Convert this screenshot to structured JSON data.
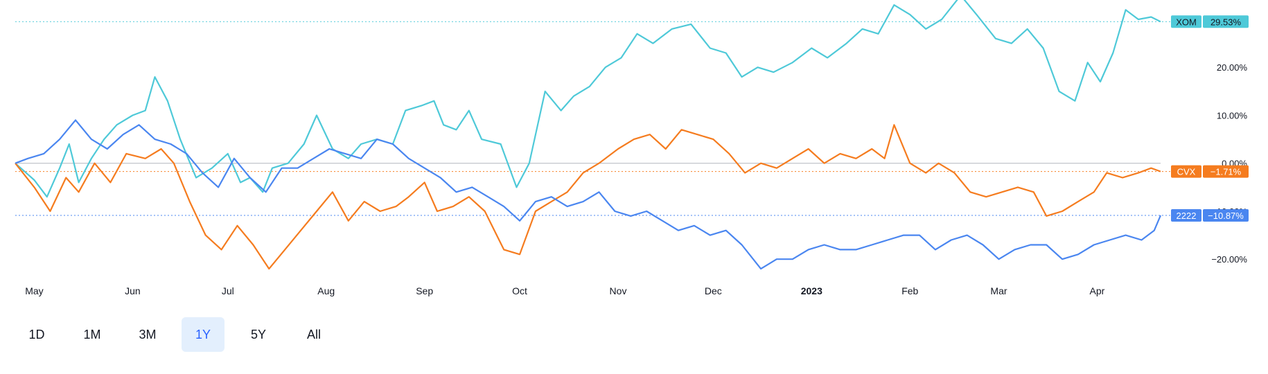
{
  "range_buttons": [
    {
      "label": "1D",
      "active": false
    },
    {
      "label": "1M",
      "active": false
    },
    {
      "label": "3M",
      "active": false
    },
    {
      "label": "1Y",
      "active": true
    },
    {
      "label": "5Y",
      "active": false
    },
    {
      "label": "All",
      "active": false
    }
  ],
  "colors": {
    "xom": "#4ec9d8",
    "cvx": "#f57c1f",
    "s2222": "#4a86f0",
    "zero_line": "#b2b5be"
  },
  "chart_data": {
    "type": "line",
    "x_range": [
      "2022-04-25",
      "2023-04-21"
    ],
    "ylim": [
      -23,
      30
    ],
    "y_ticks": [
      {
        "value": 20,
        "label": "20.00%"
      },
      {
        "value": 10,
        "label": "10.00%"
      },
      {
        "value": 0,
        "label": "0.00%"
      },
      {
        "value": -10,
        "label": "-10.00%"
      },
      {
        "value": -20,
        "label": "−20.00%"
      }
    ],
    "x_ticks": [
      {
        "date": "2022-05-01",
        "label": "May",
        "bold": false
      },
      {
        "date": "2022-06-01",
        "label": "Jun",
        "bold": false
      },
      {
        "date": "2022-07-01",
        "label": "Jul",
        "bold": false
      },
      {
        "date": "2022-08-01",
        "label": "Aug",
        "bold": false
      },
      {
        "date": "2022-09-01",
        "label": "Sep",
        "bold": false
      },
      {
        "date": "2022-10-01",
        "label": "Oct",
        "bold": false
      },
      {
        "date": "2022-11-01",
        "label": "Nov",
        "bold": false
      },
      {
        "date": "2022-12-01",
        "label": "Dec",
        "bold": false
      },
      {
        "date": "2023-01-01",
        "label": "2023",
        "bold": true
      },
      {
        "date": "2023-02-01",
        "label": "Feb",
        "bold": false
      },
      {
        "date": "2023-03-01",
        "label": "Mar",
        "bold": false
      },
      {
        "date": "2023-04-01",
        "label": "Apr",
        "bold": false
      }
    ],
    "series": [
      {
        "name": "XOM",
        "color_key": "xom",
        "last_label": "29.53%",
        "last_value": 29.53,
        "points": [
          [
            "2022-04-25",
            0.0
          ],
          [
            "2022-05-01",
            -3.5
          ],
          [
            "2022-05-05",
            -7.0
          ],
          [
            "2022-05-09",
            -1.0
          ],
          [
            "2022-05-12",
            4.0
          ],
          [
            "2022-05-15",
            -4.0
          ],
          [
            "2022-05-19",
            1.0
          ],
          [
            "2022-05-23",
            5.0
          ],
          [
            "2022-05-27",
            8.0
          ],
          [
            "2022-06-01",
            10.0
          ],
          [
            "2022-06-05",
            11.0
          ],
          [
            "2022-06-08",
            18.0
          ],
          [
            "2022-06-12",
            13.0
          ],
          [
            "2022-06-16",
            5.0
          ],
          [
            "2022-06-21",
            -3.0
          ],
          [
            "2022-06-26",
            -1.0
          ],
          [
            "2022-07-01",
            2.0
          ],
          [
            "2022-07-05",
            -4.0
          ],
          [
            "2022-07-08",
            -3.0
          ],
          [
            "2022-07-12",
            -6.0
          ],
          [
            "2022-07-15",
            -1.0
          ],
          [
            "2022-07-20",
            0.0
          ],
          [
            "2022-07-25",
            4.0
          ],
          [
            "2022-07-29",
            10.0
          ],
          [
            "2022-08-03",
            3.0
          ],
          [
            "2022-08-08",
            1.0
          ],
          [
            "2022-08-12",
            4.0
          ],
          [
            "2022-08-17",
            5.0
          ],
          [
            "2022-08-22",
            4.0
          ],
          [
            "2022-08-26",
            11.0
          ],
          [
            "2022-08-31",
            12.0
          ],
          [
            "2022-09-04",
            13.0
          ],
          [
            "2022-09-07",
            8.0
          ],
          [
            "2022-09-11",
            7.0
          ],
          [
            "2022-09-15",
            11.0
          ],
          [
            "2022-09-19",
            5.0
          ],
          [
            "2022-09-25",
            4.0
          ],
          [
            "2022-09-30",
            -5.0
          ],
          [
            "2022-10-04",
            0.0
          ],
          [
            "2022-10-09",
            15.0
          ],
          [
            "2022-10-14",
            11.0
          ],
          [
            "2022-10-18",
            14.0
          ],
          [
            "2022-10-23",
            16.0
          ],
          [
            "2022-10-28",
            20.0
          ],
          [
            "2022-11-02",
            22.0
          ],
          [
            "2022-11-07",
            27.0
          ],
          [
            "2022-11-12",
            25.0
          ],
          [
            "2022-11-18",
            28.0
          ],
          [
            "2022-11-24",
            29.0
          ],
          [
            "2022-11-30",
            24.0
          ],
          [
            "2022-12-05",
            23.0
          ],
          [
            "2022-12-10",
            18.0
          ],
          [
            "2022-12-15",
            20.0
          ],
          [
            "2022-12-20",
            19.0
          ],
          [
            "2022-12-26",
            21.0
          ],
          [
            "2023-01-01",
            24.0
          ],
          [
            "2023-01-06",
            22.0
          ],
          [
            "2023-01-12",
            25.0
          ],
          [
            "2023-01-17",
            28.0
          ],
          [
            "2023-01-22",
            27.0
          ],
          [
            "2023-01-27",
            33.0
          ],
          [
            "2023-02-01",
            31.0
          ],
          [
            "2023-02-06",
            28.0
          ],
          [
            "2023-02-11",
            30.0
          ],
          [
            "2023-02-17",
            35.0
          ],
          [
            "2023-02-22",
            31.0
          ],
          [
            "2023-02-28",
            26.0
          ],
          [
            "2023-03-05",
            25.0
          ],
          [
            "2023-03-10",
            28.0
          ],
          [
            "2023-03-15",
            24.0
          ],
          [
            "2023-03-20",
            15.0
          ],
          [
            "2023-03-25",
            13.0
          ],
          [
            "2023-03-29",
            21.0
          ],
          [
            "2023-04-02",
            17.0
          ],
          [
            "2023-04-06",
            23.0
          ],
          [
            "2023-04-10",
            32.0
          ],
          [
            "2023-04-14",
            30.0
          ],
          [
            "2023-04-18",
            30.5
          ],
          [
            "2023-04-21",
            29.53
          ]
        ]
      },
      {
        "name": "CVX",
        "color_key": "cvx",
        "last_label": "−1.71%",
        "last_value": -1.71,
        "points": [
          [
            "2022-04-25",
            0.0
          ],
          [
            "2022-05-01",
            -5.0
          ],
          [
            "2022-05-06",
            -10.0
          ],
          [
            "2022-05-11",
            -3.0
          ],
          [
            "2022-05-15",
            -6.0
          ],
          [
            "2022-05-20",
            0.0
          ],
          [
            "2022-05-25",
            -4.0
          ],
          [
            "2022-05-30",
            2.0
          ],
          [
            "2022-06-05",
            1.0
          ],
          [
            "2022-06-10",
            3.0
          ],
          [
            "2022-06-14",
            0.0
          ],
          [
            "2022-06-19",
            -8.0
          ],
          [
            "2022-06-24",
            -15.0
          ],
          [
            "2022-06-29",
            -18.0
          ],
          [
            "2022-07-04",
            -13.0
          ],
          [
            "2022-07-09",
            -17.0
          ],
          [
            "2022-07-14",
            -22.0
          ],
          [
            "2022-07-19",
            -18.0
          ],
          [
            "2022-07-24",
            -14.0
          ],
          [
            "2022-07-29",
            -10.0
          ],
          [
            "2022-08-03",
            -6.0
          ],
          [
            "2022-08-08",
            -12.0
          ],
          [
            "2022-08-13",
            -8.0
          ],
          [
            "2022-08-18",
            -10.0
          ],
          [
            "2022-08-23",
            -9.0
          ],
          [
            "2022-08-27",
            -7.0
          ],
          [
            "2022-09-01",
            -4.0
          ],
          [
            "2022-09-05",
            -10.0
          ],
          [
            "2022-09-10",
            -9.0
          ],
          [
            "2022-09-15",
            -7.0
          ],
          [
            "2022-09-20",
            -10.0
          ],
          [
            "2022-09-26",
            -18.0
          ],
          [
            "2022-10-01",
            -19.0
          ],
          [
            "2022-10-06",
            -10.0
          ],
          [
            "2022-10-11",
            -8.0
          ],
          [
            "2022-10-16",
            -6.0
          ],
          [
            "2022-10-21",
            -2.0
          ],
          [
            "2022-10-26",
            0.0
          ],
          [
            "2022-11-01",
            3.0
          ],
          [
            "2022-11-06",
            5.0
          ],
          [
            "2022-11-11",
            6.0
          ],
          [
            "2022-11-16",
            3.0
          ],
          [
            "2022-11-21",
            7.0
          ],
          [
            "2022-11-26",
            6.0
          ],
          [
            "2022-12-01",
            5.0
          ],
          [
            "2022-12-06",
            2.0
          ],
          [
            "2022-12-11",
            -2.0
          ],
          [
            "2022-12-16",
            0.0
          ],
          [
            "2022-12-21",
            -1.0
          ],
          [
            "2022-12-26",
            1.0
          ],
          [
            "2022-12-31",
            3.0
          ],
          [
            "2023-01-05",
            0.0
          ],
          [
            "2023-01-10",
            2.0
          ],
          [
            "2023-01-15",
            1.0
          ],
          [
            "2023-01-20",
            3.0
          ],
          [
            "2023-01-24",
            1.0
          ],
          [
            "2023-01-27",
            8.0
          ],
          [
            "2023-02-01",
            0.0
          ],
          [
            "2023-02-06",
            -2.0
          ],
          [
            "2023-02-10",
            0.0
          ],
          [
            "2023-02-15",
            -2.0
          ],
          [
            "2023-02-20",
            -6.0
          ],
          [
            "2023-02-25",
            -7.0
          ],
          [
            "2023-03-02",
            -6.0
          ],
          [
            "2023-03-07",
            -5.0
          ],
          [
            "2023-03-12",
            -6.0
          ],
          [
            "2023-03-16",
            -11.0
          ],
          [
            "2023-03-21",
            -10.0
          ],
          [
            "2023-03-26",
            -8.0
          ],
          [
            "2023-03-31",
            -6.0
          ],
          [
            "2023-04-04",
            -2.0
          ],
          [
            "2023-04-09",
            -3.0
          ],
          [
            "2023-04-14",
            -2.0
          ],
          [
            "2023-04-18",
            -1.0
          ],
          [
            "2023-04-21",
            -1.71
          ]
        ]
      },
      {
        "name": "2222",
        "color_key": "s2222",
        "last_label": "−10.87%",
        "last_value": -10.87,
        "points": [
          [
            "2022-04-25",
            0.0
          ],
          [
            "2022-04-29",
            1.0
          ],
          [
            "2022-05-04",
            2.0
          ],
          [
            "2022-05-09",
            5.0
          ],
          [
            "2022-05-14",
            9.0
          ],
          [
            "2022-05-19",
            5.0
          ],
          [
            "2022-05-24",
            3.0
          ],
          [
            "2022-05-29",
            6.0
          ],
          [
            "2022-06-03",
            8.0
          ],
          [
            "2022-06-08",
            5.0
          ],
          [
            "2022-06-13",
            4.0
          ],
          [
            "2022-06-18",
            2.0
          ],
          [
            "2022-06-23",
            -2.0
          ],
          [
            "2022-06-28",
            -5.0
          ],
          [
            "2022-07-03",
            1.0
          ],
          [
            "2022-07-08",
            -3.0
          ],
          [
            "2022-07-13",
            -6.0
          ],
          [
            "2022-07-18",
            -1.0
          ],
          [
            "2022-07-23",
            -1.0
          ],
          [
            "2022-07-28",
            1.0
          ],
          [
            "2022-08-02",
            3.0
          ],
          [
            "2022-08-07",
            2.0
          ],
          [
            "2022-08-12",
            1.0
          ],
          [
            "2022-08-17",
            5.0
          ],
          [
            "2022-08-22",
            4.0
          ],
          [
            "2022-08-27",
            1.0
          ],
          [
            "2022-09-01",
            -1.0
          ],
          [
            "2022-09-06",
            -3.0
          ],
          [
            "2022-09-11",
            -6.0
          ],
          [
            "2022-09-16",
            -5.0
          ],
          [
            "2022-09-21",
            -7.0
          ],
          [
            "2022-09-26",
            -9.0
          ],
          [
            "2022-10-01",
            -12.0
          ],
          [
            "2022-10-06",
            -8.0
          ],
          [
            "2022-10-11",
            -7.0
          ],
          [
            "2022-10-16",
            -9.0
          ],
          [
            "2022-10-21",
            -8.0
          ],
          [
            "2022-10-26",
            -6.0
          ],
          [
            "2022-10-31",
            -10.0
          ],
          [
            "2022-11-05",
            -11.0
          ],
          [
            "2022-11-10",
            -10.0
          ],
          [
            "2022-11-15",
            -12.0
          ],
          [
            "2022-11-20",
            -14.0
          ],
          [
            "2022-11-25",
            -13.0
          ],
          [
            "2022-11-30",
            -15.0
          ],
          [
            "2022-12-05",
            -14.0
          ],
          [
            "2022-12-10",
            -17.0
          ],
          [
            "2022-12-16",
            -22.0
          ],
          [
            "2022-12-21",
            -20.0
          ],
          [
            "2022-12-26",
            -20.0
          ],
          [
            "2022-12-31",
            -18.0
          ],
          [
            "2023-01-05",
            -17.0
          ],
          [
            "2023-01-10",
            -18.0
          ],
          [
            "2023-01-15",
            -18.0
          ],
          [
            "2023-01-20",
            -17.0
          ],
          [
            "2023-01-25",
            -16.0
          ],
          [
            "2023-01-30",
            -15.0
          ],
          [
            "2023-02-04",
            -15.0
          ],
          [
            "2023-02-09",
            -18.0
          ],
          [
            "2023-02-14",
            -16.0
          ],
          [
            "2023-02-19",
            -15.0
          ],
          [
            "2023-02-24",
            -17.0
          ],
          [
            "2023-03-01",
            -20.0
          ],
          [
            "2023-03-06",
            -18.0
          ],
          [
            "2023-03-11",
            -17.0
          ],
          [
            "2023-03-16",
            -17.0
          ],
          [
            "2023-03-21",
            -20.0
          ],
          [
            "2023-03-26",
            -19.0
          ],
          [
            "2023-03-31",
            -17.0
          ],
          [
            "2023-04-05",
            -16.0
          ],
          [
            "2023-04-10",
            -15.0
          ],
          [
            "2023-04-15",
            -16.0
          ],
          [
            "2023-04-19",
            -14.0
          ],
          [
            "2023-04-21",
            -10.87
          ]
        ]
      }
    ]
  }
}
